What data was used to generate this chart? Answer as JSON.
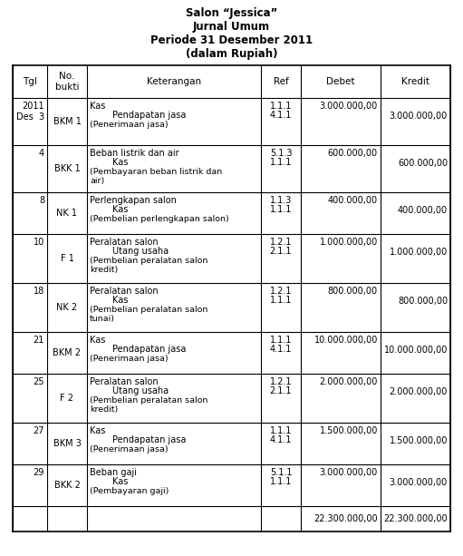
{
  "title1": "Salon “Jessica”",
  "title2": "Jurnal Umum",
  "title3": "Periode 31 Desember 2011",
  "title4": "(dalam Rupiah)",
  "headers": [
    "Tgl",
    "No.\nbukti",
    "Keterangan",
    "Ref",
    "Debet",
    "Kredit"
  ],
  "rows": [
    {
      "tgl": "2011\nDes  3",
      "bukti": "BKM 1",
      "ket1": "Kas",
      "ket2": "        Pendapatan jasa",
      "ket3": "(Penerimaan jasa)",
      "ref1": "1.1.1",
      "ref2": "4.1.1",
      "debet": "3.000.000,00",
      "kredit": "3.000.000,00"
    },
    {
      "tgl": "4",
      "bukti": "BKK 1",
      "ket1": "Beban listrik dan air",
      "ket2": "        Kas",
      "ket3": "(Pembayaran beban listrik dan\nair)",
      "ref1": "5.1.3",
      "ref2": "1.1.1",
      "debet": "600.000,00",
      "kredit": "600.000,00"
    },
    {
      "tgl": "8",
      "bukti": "NK 1",
      "ket1": "Perlengkapan salon",
      "ket2": "        Kas",
      "ket3": "(Pembelian perlengkapan salon)",
      "ref1": "1.1.3",
      "ref2": "1.1.1",
      "debet": "400.000,00",
      "kredit": "400.000,00"
    },
    {
      "tgl": "10",
      "bukti": "F 1",
      "ket1": "Peralatan salon",
      "ket2": "        Utang usaha",
      "ket3": "(Pembelian peralatan salon\nkredit)",
      "ref1": "1.2.1",
      "ref2": "2.1.1",
      "debet": "1.000.000,00",
      "kredit": "1.000.000,00"
    },
    {
      "tgl": "18",
      "bukti": "NK 2",
      "ket1": "Peralatan salon",
      "ket2": "        Kas",
      "ket3": "(Pembelian peralatan salon\ntunai)",
      "ref1": "1.2.1",
      "ref2": "1.1.1",
      "debet": "800.000,00",
      "kredit": "800.000,00"
    },
    {
      "tgl": "21",
      "bukti": "BKM 2",
      "ket1": "Kas",
      "ket2": "        Pendapatan jasa",
      "ket3": "(Penerimaan jasa)",
      "ref1": "1.1.1",
      "ref2": "4.1.1",
      "debet": "10.000.000,00",
      "kredit": "10.000.000,00"
    },
    {
      "tgl": "25",
      "bukti": "F 2",
      "ket1": "Peralatan salon",
      "ket2": "        Utang usaha",
      "ket3": "(Pembelian peralatan salon\nkredit)",
      "ref1": "1.2.1",
      "ref2": "2.1.1",
      "debet": "2.000.000,00",
      "kredit": "2.000.000,00"
    },
    {
      "tgl": "27",
      "bukti": "BKM 3",
      "ket1": "Kas",
      "ket2": "        Pendapatan jasa",
      "ket3": "(Penerimaan jasa)",
      "ref1": "1.1.1",
      "ref2": "4.1.1",
      "debet": "1.500.000,00",
      "kredit": "1.500.000,00"
    },
    {
      "tgl": "29",
      "bukti": "BKK 2",
      "ket1": "Beban gaji",
      "ket2": "        Kas",
      "ket3": "(Pembayaran gaji)",
      "ref1": "5.1.1",
      "ref2": "1.1.1",
      "debet": "3.000.000,00",
      "kredit": "3.000.000,00"
    }
  ],
  "total_debet": "22.300.000,00",
  "total_kredit": "22.300.000,00",
  "bg_color": "#ffffff",
  "border_color": "#000000",
  "text_color": "#000000",
  "title_fontsize": 8.5,
  "header_fontsize": 7.5,
  "body_fontsize": 7.0
}
